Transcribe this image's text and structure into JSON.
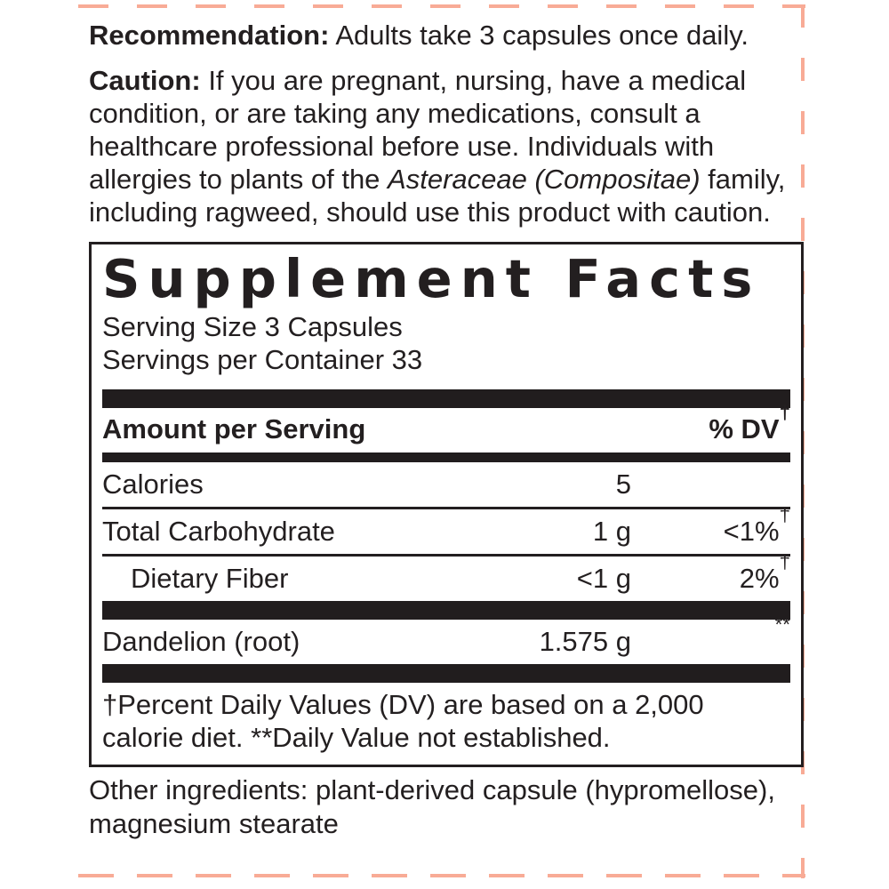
{
  "colors": {
    "text": "#231f20",
    "rule_black": "#211d1e",
    "dieline": "#f8ab96",
    "background": "#ffffff"
  },
  "recommendation": {
    "label": "Recommendation:",
    "text": " Adults take 3 capsules once daily."
  },
  "caution": {
    "label": "Caution:",
    "text_before_italic": " If you are pregnant, nursing, have a medical condition, or are taking any medications, consult a healthcare professional before use. Individuals with allergies to plants of the ",
    "italic": "Asteraceae (Compositae)",
    "text_after_italic": " family, including ragweed, should use this product with caution."
  },
  "supplement_facts": {
    "title": "Supplement Facts",
    "serving_size": "Serving Size 3 Capsules",
    "servings_per_container": "Servings per Container 33",
    "header": {
      "amount_label": "Amount per Serving",
      "dv_label": "% DV",
      "dv_dagger": "†"
    },
    "rows": [
      {
        "name": "Calories",
        "amount": "5",
        "dv": "",
        "dv_sup": "",
        "indent": false,
        "sep_after": "thin"
      },
      {
        "name": "Total Carbohydrate",
        "amount": "1 g",
        "dv": "<1%",
        "dv_sup": "†",
        "indent": false,
        "sep_after": "thin"
      },
      {
        "name": "Dietary Fiber",
        "amount": "<1 g",
        "dv": "2%",
        "dv_sup": "†",
        "indent": true,
        "sep_after": "thick"
      },
      {
        "name": "Dandelion (root)",
        "amount": "1.575 g",
        "dv": "",
        "dv_sup": "**",
        "indent": false,
        "sep_after": "thick"
      }
    ],
    "footnote": "†Percent Daily Values (DV) are based on a 2,000 calorie diet. **Daily Value not established."
  },
  "other_ingredients": {
    "text": "Other ingredients: plant-derived capsule (hypromellose), magnesium stearate"
  }
}
